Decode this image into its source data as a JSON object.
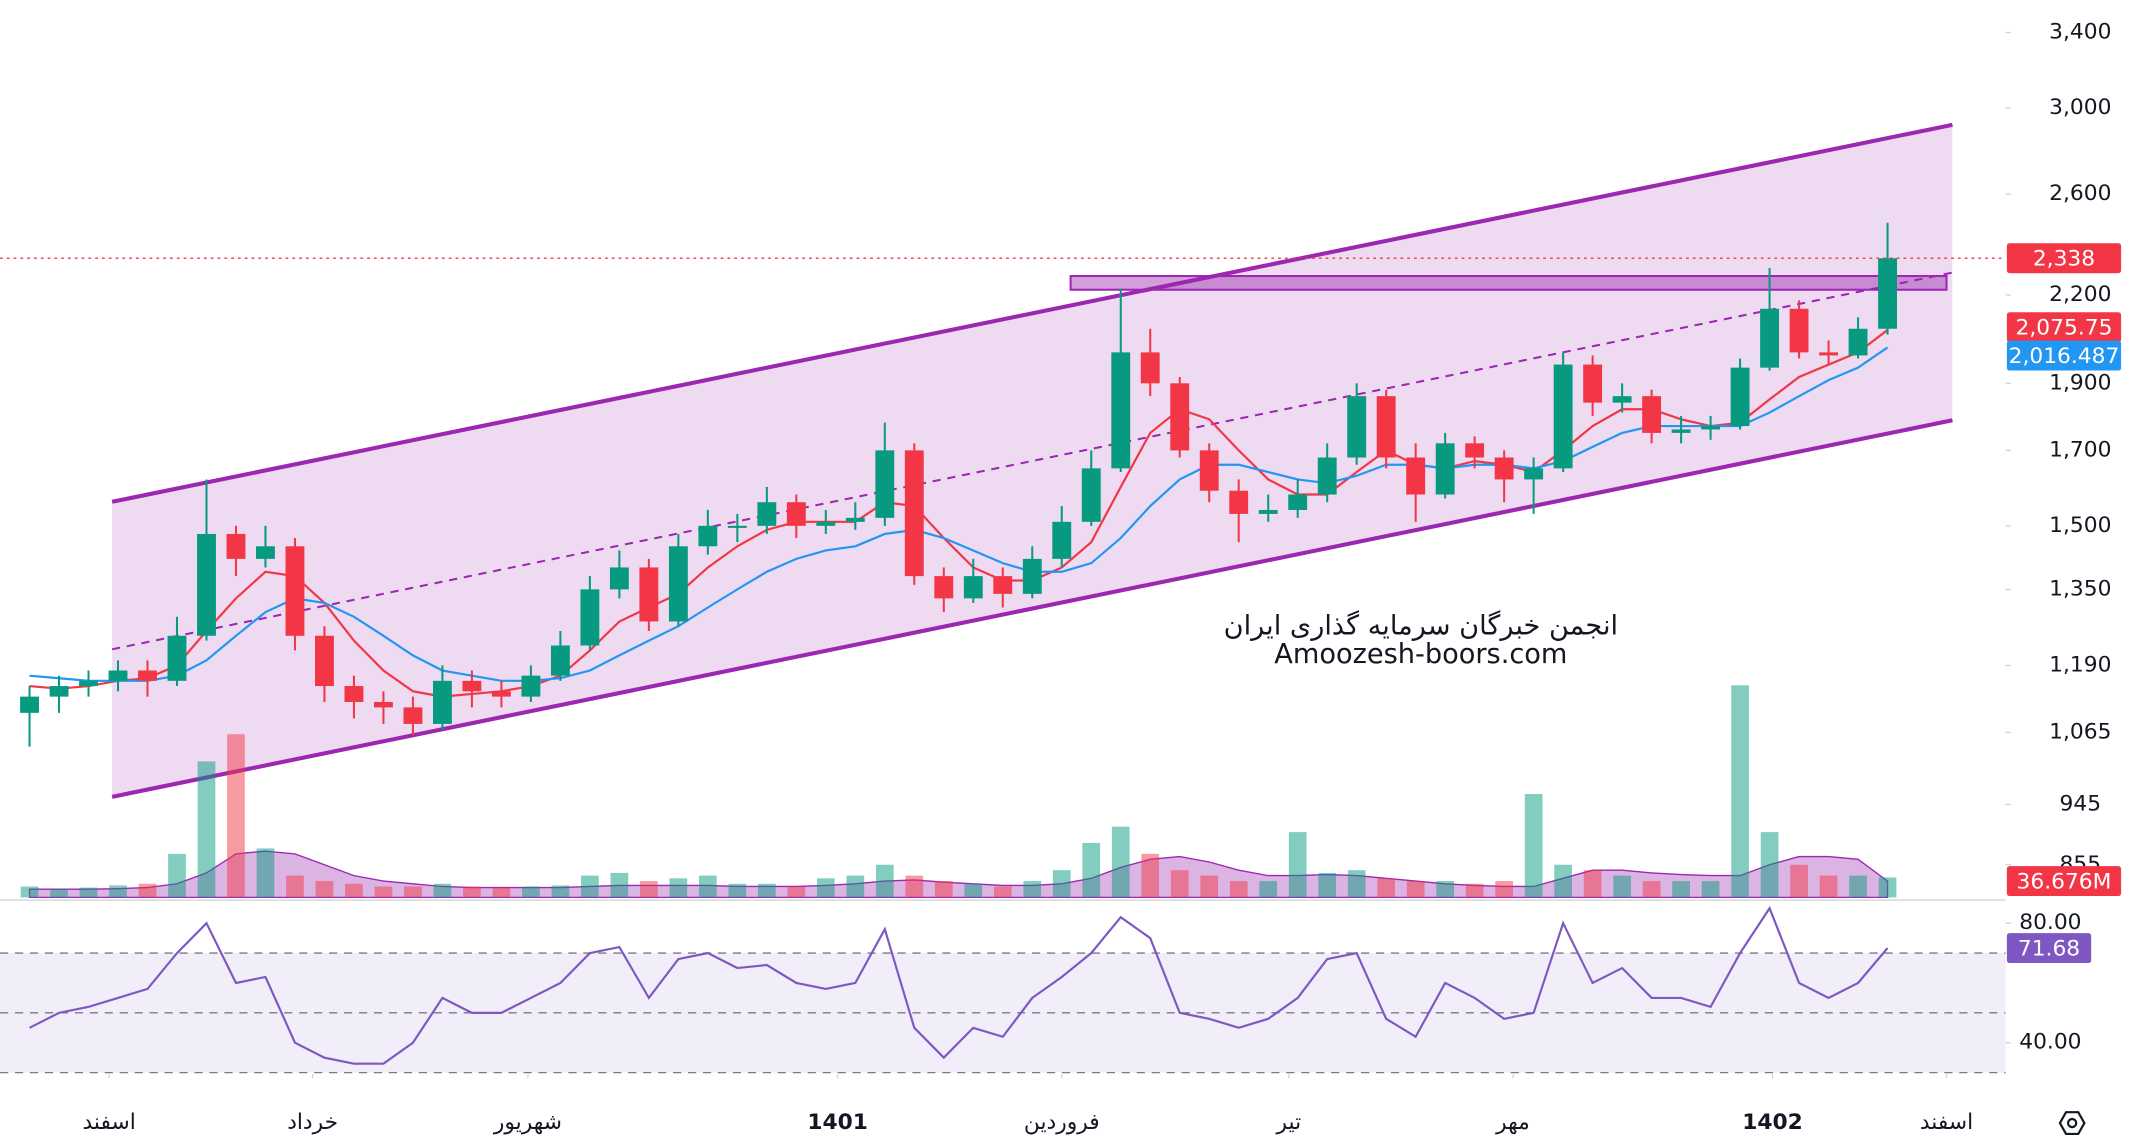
{
  "chart_data": [
    {
      "type": "candlestick",
      "log_scale": true,
      "xlim": [
        -1,
        67
      ],
      "xticks": [
        {
          "value": 2.7,
          "label": "اسفند"
        },
        {
          "value": 9.6,
          "label": "خرداد"
        },
        {
          "value": 16.9,
          "label": "شهریور"
        },
        {
          "value": 27.4,
          "label": "1401"
        },
        {
          "value": 35.0,
          "label": "فروردین"
        },
        {
          "value": 42.7,
          "label": "تیر"
        },
        {
          "value": 50.3,
          "label": "مهر"
        },
        {
          "value": 59.1,
          "label": "1402"
        },
        {
          "value": 65.0,
          "label": "اسفند"
        }
      ],
      "ylim": [
        810,
        3588
      ],
      "yticks": [
        {
          "value": 3400,
          "label": "3,400"
        },
        {
          "value": 3000,
          "label": "3,000"
        },
        {
          "value": 2600,
          "label": "2,600"
        },
        {
          "value": 2200,
          "label": "2,200"
        },
        {
          "value": 1900,
          "label": "1,900"
        },
        {
          "value": 1700,
          "label": "1,700"
        },
        {
          "value": 1500,
          "label": "1,500"
        },
        {
          "value": 1350,
          "label": "1,350"
        },
        {
          "value": 1190,
          "label": "1,190"
        },
        {
          "value": 1065,
          "label": "1,065"
        },
        945,
        855
      ],
      "up_color": "#089981",
      "down_color": "#f23645",
      "open": [
        1100,
        1130,
        1150,
        1160,
        1180,
        1160,
        1250,
        1480,
        1420,
        1450,
        1250,
        1150,
        1120,
        1110,
        1080,
        1160,
        1140,
        1130,
        1170,
        1230,
        1350,
        1400,
        1280,
        1450,
        1500,
        1500,
        1560,
        1500,
        1510,
        1520,
        1700,
        1380,
        1330,
        1380,
        1340,
        1420,
        1510,
        1650,
        2000,
        1900,
        1700,
        1590,
        1530,
        1540,
        1580,
        1680,
        1860,
        1680,
        1580,
        1720,
        1680,
        1620,
        1650,
        1960,
        1840,
        1860,
        1750,
        1760,
        1770,
        1950,
        2150,
        2000,
        1990,
        2080
      ],
      "high": [
        1150,
        1170,
        1180,
        1200,
        1200,
        1290,
        1620,
        1500,
        1500,
        1470,
        1270,
        1170,
        1140,
        1130,
        1190,
        1180,
        1160,
        1190,
        1260,
        1380,
        1440,
        1420,
        1480,
        1540,
        1530,
        1600,
        1580,
        1540,
        1560,
        1780,
        1720,
        1400,
        1420,
        1400,
        1450,
        1550,
        1700,
        2220,
        2080,
        1920,
        1720,
        1620,
        1580,
        1620,
        1720,
        1900,
        1880,
        1720,
        1750,
        1740,
        1700,
        1680,
        2000,
        1990,
        1900,
        1880,
        1800,
        1800,
        1980,
        2300,
        2180,
        2040,
        2120,
        2480
      ],
      "low": [
        1040,
        1100,
        1130,
        1140,
        1130,
        1150,
        1240,
        1380,
        1400,
        1220,
        1120,
        1090,
        1080,
        1060,
        1070,
        1110,
        1110,
        1120,
        1160,
        1220,
        1330,
        1260,
        1270,
        1430,
        1460,
        1480,
        1470,
        1480,
        1490,
        1500,
        1360,
        1300,
        1320,
        1310,
        1330,
        1400,
        1500,
        1640,
        1860,
        1680,
        1560,
        1460,
        1510,
        1520,
        1560,
        1660,
        1650,
        1510,
        1570,
        1650,
        1560,
        1530,
        1640,
        1800,
        1810,
        1720,
        1720,
        1730,
        1760,
        1940,
        1980,
        1960,
        1980,
        2060
      ],
      "close": [
        1130,
        1150,
        1160,
        1180,
        1160,
        1250,
        1480,
        1420,
        1450,
        1250,
        1150,
        1120,
        1110,
        1080,
        1160,
        1140,
        1130,
        1170,
        1230,
        1350,
        1400,
        1280,
        1450,
        1500,
        1500,
        1560,
        1500,
        1510,
        1520,
        1700,
        1380,
        1330,
        1380,
        1340,
        1420,
        1510,
        1650,
        2000,
        1900,
        1700,
        1590,
        1530,
        1540,
        1580,
        1680,
        1860,
        1680,
        1580,
        1720,
        1680,
        1620,
        1650,
        1960,
        1840,
        1860,
        1750,
        1760,
        1770,
        1950,
        2150,
        2000,
        1990,
        2080,
        2338
      ],
      "close_label": "2,338",
      "close_color": "#f23645",
      "overlays": [
        {
          "color": "#f23645",
          "value_label": "2,075.75",
          "values": [
            1150,
            1145,
            1150,
            1160,
            1165,
            1190,
            1260,
            1330,
            1390,
            1380,
            1320,
            1240,
            1180,
            1140,
            1130,
            1135,
            1140,
            1150,
            1170,
            1220,
            1280,
            1310,
            1340,
            1400,
            1450,
            1490,
            1510,
            1510,
            1510,
            1560,
            1550,
            1470,
            1400,
            1370,
            1370,
            1400,
            1460,
            1600,
            1750,
            1820,
            1790,
            1700,
            1620,
            1580,
            1580,
            1640,
            1700,
            1660,
            1650,
            1670,
            1660,
            1640,
            1700,
            1770,
            1820,
            1820,
            1790,
            1770,
            1780,
            1850,
            1920,
            1960,
            2000,
            2075.75
          ]
        },
        {
          "color": "#2196f3",
          "value_label": "2,016.487",
          "values": [
            1170,
            1165,
            1160,
            1160,
            1160,
            1170,
            1200,
            1250,
            1300,
            1330,
            1320,
            1290,
            1250,
            1210,
            1180,
            1170,
            1160,
            1160,
            1165,
            1180,
            1210,
            1240,
            1270,
            1310,
            1350,
            1390,
            1420,
            1440,
            1450,
            1480,
            1490,
            1470,
            1440,
            1410,
            1390,
            1390,
            1410,
            1470,
            1550,
            1620,
            1660,
            1660,
            1640,
            1620,
            1610,
            1630,
            1660,
            1660,
            1650,
            1660,
            1660,
            1650,
            1670,
            1710,
            1750,
            1770,
            1770,
            1770,
            1770,
            1810,
            1860,
            1910,
            1950,
            2016.487
          ]
        }
      ],
      "channel": {
        "color": "#9c27b0",
        "x": [
          2.8,
          65.2
        ],
        "upper": [
          1561,
          2917
        ],
        "lower": [
          957,
          1787
        ]
      },
      "box": {
        "color": "#9c27b0",
        "x": [
          35.3,
          65.0
        ],
        "top": 2270,
        "bottom": 2219
      },
      "watermark": [
        "انجمن خبرگان سرمایه گذاری ایران",
        "Amoozesh-boors.com"
      ],
      "volume": {
        "ylim": [
          0,
          400
        ],
        "value_label": "36.676M",
        "ma_color": "#9c27b0",
        "values": [
          20,
          15,
          18,
          22,
          25,
          80,
          250,
          300,
          90,
          40,
          30,
          25,
          20,
          20,
          25,
          20,
          18,
          20,
          22,
          40,
          45,
          30,
          35,
          40,
          25,
          25,
          20,
          35,
          40,
          60,
          40,
          30,
          25,
          20,
          30,
          50,
          100,
          130,
          80,
          50,
          40,
          30,
          30,
          120,
          45,
          50,
          35,
          30,
          30,
          25,
          30,
          190,
          60,
          50,
          40,
          30,
          30,
          30,
          390,
          120,
          60,
          40,
          40,
          36.676
        ],
        "ma": [
          15,
          15,
          15,
          16,
          18,
          25,
          45,
          80,
          85,
          80,
          60,
          40,
          30,
          25,
          20,
          18,
          18,
          18,
          18,
          20,
          22,
          22,
          22,
          22,
          20,
          20,
          20,
          22,
          25,
          30,
          32,
          28,
          25,
          22,
          22,
          25,
          35,
          55,
          70,
          75,
          65,
          50,
          40,
          40,
          42,
          40,
          35,
          30,
          25,
          22,
          20,
          20,
          35,
          50,
          50,
          45,
          42,
          40,
          40,
          60,
          75,
          75,
          70,
          30
        ]
      }
    },
    {
      "type": "line",
      "ylim": [
        29.5,
        85
      ],
      "color": "#7e57c2",
      "yticks": [
        {
          "value": 80,
          "label": "80.00"
        },
        {
          "value": 40,
          "label": "40.00"
        }
      ],
      "bands": [
        70,
        50,
        30
      ],
      "value_label": "71.68",
      "values": [
        45,
        50,
        52,
        55,
        58,
        70,
        80,
        60,
        62,
        40,
        35,
        33,
        33,
        40,
        55,
        50,
        50,
        55,
        60,
        70,
        72,
        55,
        68,
        70,
        65,
        66,
        60,
        58,
        60,
        78,
        45,
        35,
        45,
        42,
        55,
        62,
        70,
        82,
        75,
        50,
        48,
        45,
        48,
        55,
        68,
        70,
        48,
        42,
        60,
        55,
        48,
        50,
        80,
        60,
        65,
        55,
        55,
        52,
        70,
        85,
        60,
        55,
        60,
        71.68
      ]
    }
  ]
}
